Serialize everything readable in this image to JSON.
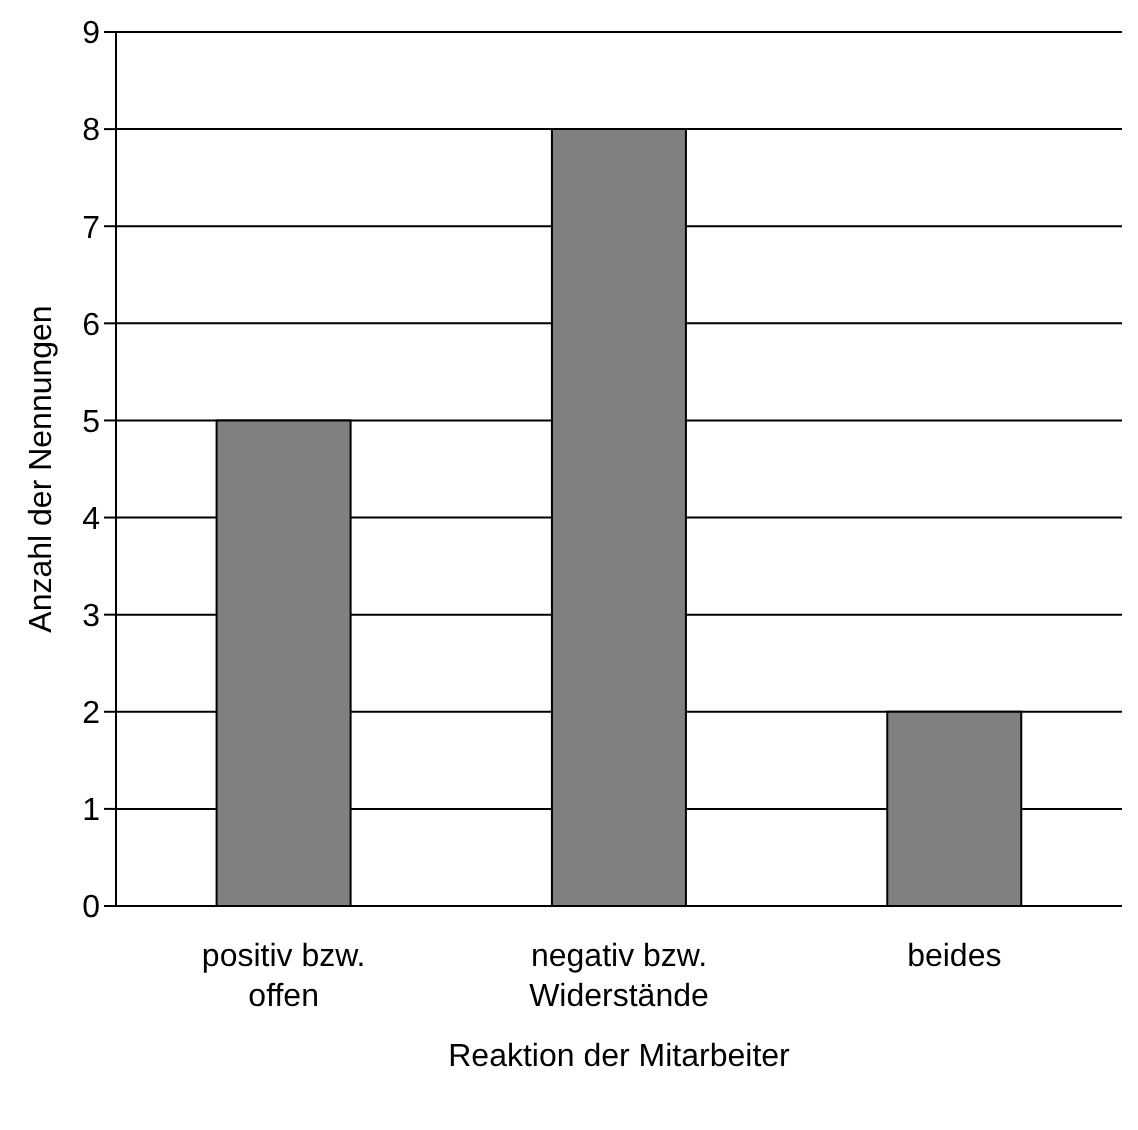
{
  "chart_data": {
    "type": "bar",
    "xlabel": "Reaktion der Mitarbeiter",
    "ylabel": "Anzahl der Nennungen",
    "categories": [
      "positiv bzw. offen",
      "negativ bzw. Widerstände",
      "beides"
    ],
    "values": [
      5,
      8,
      2
    ],
    "color": "#808080",
    "ylim": [
      0,
      9
    ],
    "yticks": [
      0,
      1,
      2,
      3,
      4,
      5,
      6,
      7,
      8,
      9
    ],
    "grid": "y",
    "legend": false
  }
}
